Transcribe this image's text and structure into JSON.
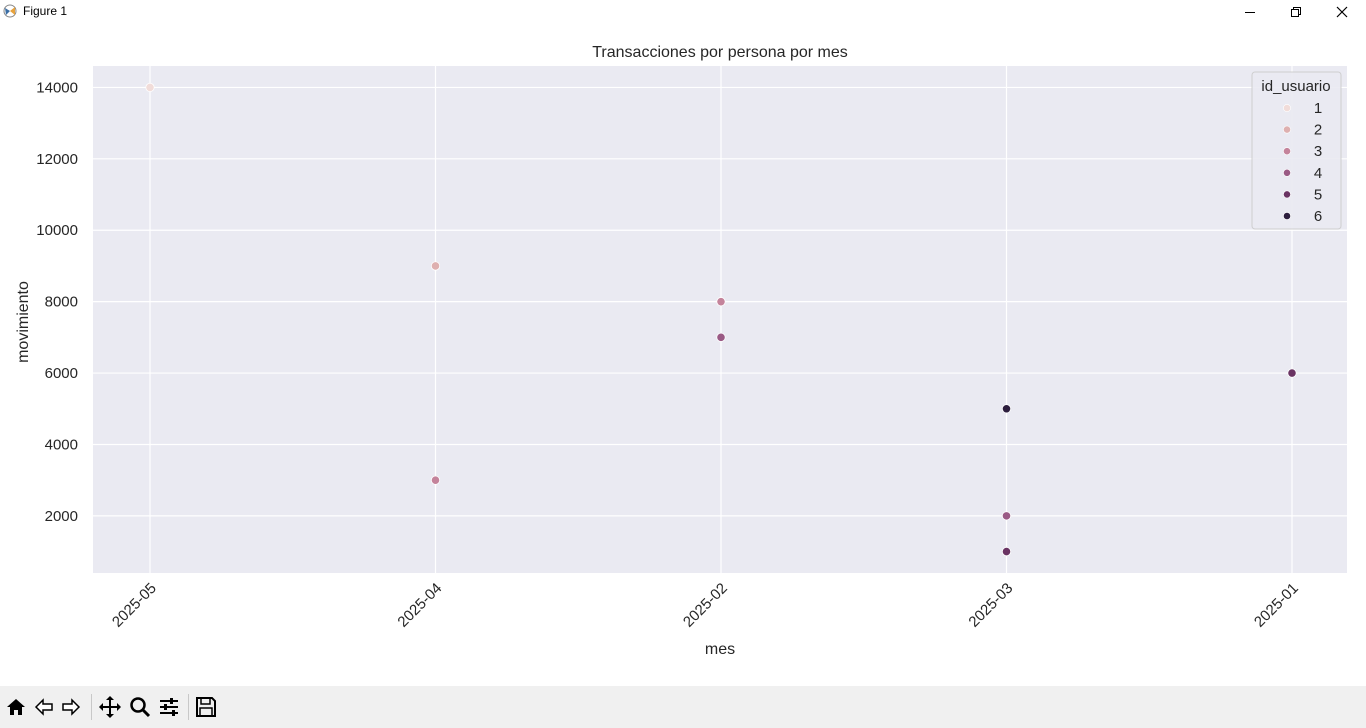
{
  "window": {
    "title": "Figure 1"
  },
  "toolbar": {
    "buttons": [
      {
        "name": "home-icon"
      },
      {
        "name": "back-arrow-icon"
      },
      {
        "name": "forward-arrow-icon"
      },
      {
        "name": "pan-icon"
      },
      {
        "name": "zoom-icon"
      },
      {
        "name": "configure-subplots-icon"
      },
      {
        "name": "save-icon"
      }
    ]
  },
  "colors": {
    "plot_background": "#eaeaf2",
    "grid": "#ffffff",
    "text": "#262626"
  },
  "chart_data": {
    "type": "scatter",
    "title": "Transacciones por persona por mes",
    "xlabel": "mes",
    "ylabel": "movimiento",
    "categories": [
      "2025-05",
      "2025-04",
      "2025-02",
      "2025-03",
      "2025-01"
    ],
    "yticks": [
      2000,
      4000,
      6000,
      8000,
      10000,
      12000,
      14000
    ],
    "ylim": [
      400,
      14600
    ],
    "grid": true,
    "legend": {
      "title": "id_usuario",
      "placement": "top-right"
    },
    "series": [
      {
        "name": "1",
        "color": "#f1dcd9",
        "points": [
          {
            "x": "2025-05",
            "y": 14000
          }
        ]
      },
      {
        "name": "2",
        "color": "#deb0b0",
        "points": [
          {
            "x": "2025-04",
            "y": 9000
          }
        ]
      },
      {
        "name": "3",
        "color": "#c4839b",
        "points": [
          {
            "x": "2025-04",
            "y": 3000
          },
          {
            "x": "2025-02",
            "y": 8000
          }
        ]
      },
      {
        "name": "4",
        "color": "#9a5a85",
        "points": [
          {
            "x": "2025-02",
            "y": 7000
          },
          {
            "x": "2025-03",
            "y": 2000
          }
        ]
      },
      {
        "name": "5",
        "color": "#6a3363",
        "points": [
          {
            "x": "2025-03",
            "y": 1000
          },
          {
            "x": "2025-01",
            "y": 6000
          }
        ]
      },
      {
        "name": "6",
        "color": "#2d1e3e",
        "points": [
          {
            "x": "2025-03",
            "y": 5000
          }
        ]
      }
    ]
  }
}
